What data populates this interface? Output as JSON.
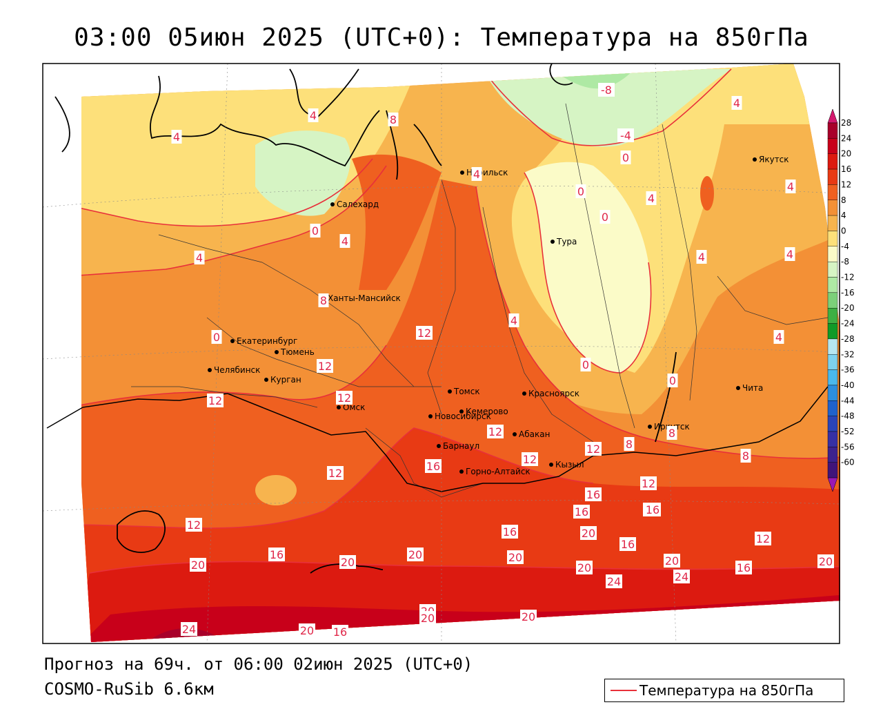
{
  "title": "03:00 05июн 2025 (UTC+0): Температура на 850гПа",
  "footer": {
    "forecast": "Прогноз на 69ч. от 06:00 02июн 2025 (UTC+0)",
    "model": "COSMO-RuSib 6.6км"
  },
  "legend": {
    "line_label": "Температура на 850гПа",
    "line_color": "#e8303a"
  },
  "colorbar": {
    "ticks": [
      "28",
      "24",
      "20",
      "16",
      "12",
      "8",
      "4",
      "0",
      "-4",
      "-8",
      "-12",
      "-16",
      "-20",
      "-24",
      "-28",
      "-32",
      "-36",
      "-40",
      "-44",
      "-48",
      "-52",
      "-56",
      "-60"
    ],
    "colors": [
      "#a8002a",
      "#c8001a",
      "#dc1a10",
      "#e83a14",
      "#ef6020",
      "#f39036",
      "#f7b44e",
      "#fde07a",
      "#fbfbc8",
      "#d6f4c4",
      "#aee9a4",
      "#7cd07a",
      "#3eb044",
      "#109a28",
      "#b6e6f0",
      "#7ed2ee",
      "#4ab8ec",
      "#2c8ede",
      "#2062cc",
      "#2a44b8",
      "#3630a4",
      "#3c228e",
      "#40147a"
    ],
    "top_color": "#d4186e",
    "bottom_color": "#9a18b4"
  },
  "cities": [
    {
      "name": "Норильск"
    },
    {
      "name": "Якутск"
    },
    {
      "name": "Салехард"
    },
    {
      "name": "Тура"
    },
    {
      "name": "Ханты-Мансийск"
    },
    {
      "name": "Екатеринбург"
    },
    {
      "name": "Тюмень"
    },
    {
      "name": "Челябинск"
    },
    {
      "name": "Курган"
    },
    {
      "name": "Томск"
    },
    {
      "name": "Красноярск"
    },
    {
      "name": "Омск"
    },
    {
      "name": "Новосибирск"
    },
    {
      "name": "Кемерово"
    },
    {
      "name": "Абакан"
    },
    {
      "name": "Барнаул"
    },
    {
      "name": "Горно-Алтайск"
    },
    {
      "name": "Кызыл"
    },
    {
      "name": "Иркутск"
    },
    {
      "name": "Чита"
    }
  ],
  "contour_labels": [
    "-8",
    "-4",
    "0",
    "0",
    "0",
    "0",
    "0",
    "0",
    "0",
    "4",
    "4",
    "4",
    "4",
    "4",
    "4",
    "4",
    "4",
    "4",
    "4",
    "4",
    "4",
    "8",
    "8",
    "8",
    "8",
    "8",
    "12",
    "12",
    "12",
    "12",
    "12",
    "12",
    "12",
    "12",
    "12",
    "12",
    "12",
    "16",
    "16",
    "16",
    "16",
    "16",
    "16",
    "16",
    "16",
    "16",
    "16",
    "20",
    "20",
    "20",
    "20",
    "20",
    "20",
    "20",
    "20",
    "20",
    "20",
    "20",
    "20",
    "24",
    "24",
    "24"
  ]
}
